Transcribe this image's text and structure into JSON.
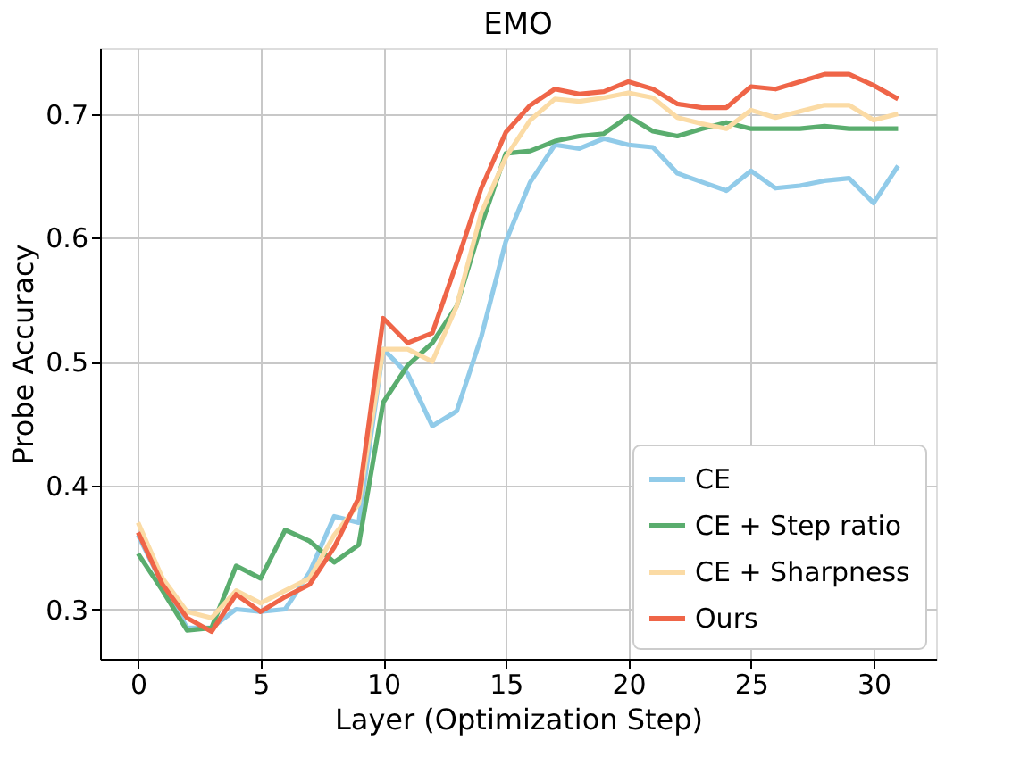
{
  "chart_data": {
    "type": "line",
    "title": "EMO",
    "xlabel": "Layer (Optimization Step)",
    "ylabel": "Probe Accuracy",
    "x": [
      0,
      1,
      2,
      3,
      4,
      5,
      6,
      7,
      8,
      9,
      10,
      11,
      12,
      13,
      14,
      15,
      16,
      17,
      18,
      19,
      20,
      21,
      22,
      23,
      24,
      25,
      26,
      27,
      28,
      29,
      30,
      31
    ],
    "series": [
      {
        "name": "CE",
        "color": "#91cbe9",
        "values": [
          0.36,
          0.32,
          0.285,
          0.285,
          0.3,
          0.298,
          0.3,
          0.33,
          0.375,
          0.37,
          0.51,
          0.49,
          0.448,
          0.46,
          0.52,
          0.597,
          0.645,
          0.675,
          0.672,
          0.68,
          0.675,
          0.673,
          0.652,
          0.645,
          0.638,
          0.654,
          0.64,
          0.642,
          0.646,
          0.648,
          0.628,
          0.658
        ]
      },
      {
        "name": "CE + Step ratio",
        "color": "#5aad6e",
        "values": [
          0.345,
          0.315,
          0.283,
          0.285,
          0.335,
          0.325,
          0.364,
          0.355,
          0.338,
          0.352,
          0.467,
          0.497,
          0.515,
          0.545,
          0.61,
          0.668,
          0.67,
          0.678,
          0.682,
          0.684,
          0.698,
          0.686,
          0.682,
          0.688,
          0.693,
          0.688,
          0.688,
          0.688,
          0.69,
          0.688,
          0.688,
          0.688
        ]
      },
      {
        "name": "CE + Sharpness",
        "color": "#fbdba5",
        "values": [
          0.37,
          0.325,
          0.298,
          0.293,
          0.315,
          0.305,
          0.315,
          0.325,
          0.36,
          0.385,
          0.51,
          0.51,
          0.5,
          0.545,
          0.62,
          0.665,
          0.695,
          0.712,
          0.71,
          0.713,
          0.717,
          0.713,
          0.697,
          0.692,
          0.688,
          0.703,
          0.697,
          0.702,
          0.707,
          0.707,
          0.695,
          0.7
        ]
      },
      {
        "name": "Ours",
        "color": "#ef6548",
        "values": [
          0.362,
          0.32,
          0.293,
          0.282,
          0.312,
          0.298,
          0.31,
          0.32,
          0.35,
          0.39,
          0.535,
          0.515,
          0.523,
          0.58,
          0.64,
          0.685,
          0.707,
          0.72,
          0.716,
          0.718,
          0.726,
          0.72,
          0.708,
          0.705,
          0.705,
          0.722,
          0.72,
          0.726,
          0.732,
          0.732,
          0.723,
          0.712
        ]
      }
    ],
    "xlim": [
      -1.55,
      32.55
    ],
    "xticks": [
      0,
      5,
      10,
      15,
      20,
      25,
      30
    ],
    "ylim": [
      0.26,
      0.753
    ],
    "yticks": [
      0.3,
      0.4,
      0.5,
      0.6,
      0.7
    ],
    "grid": true,
    "legend": "bottom right",
    "marker": "none",
    "line_style": "solid"
  }
}
